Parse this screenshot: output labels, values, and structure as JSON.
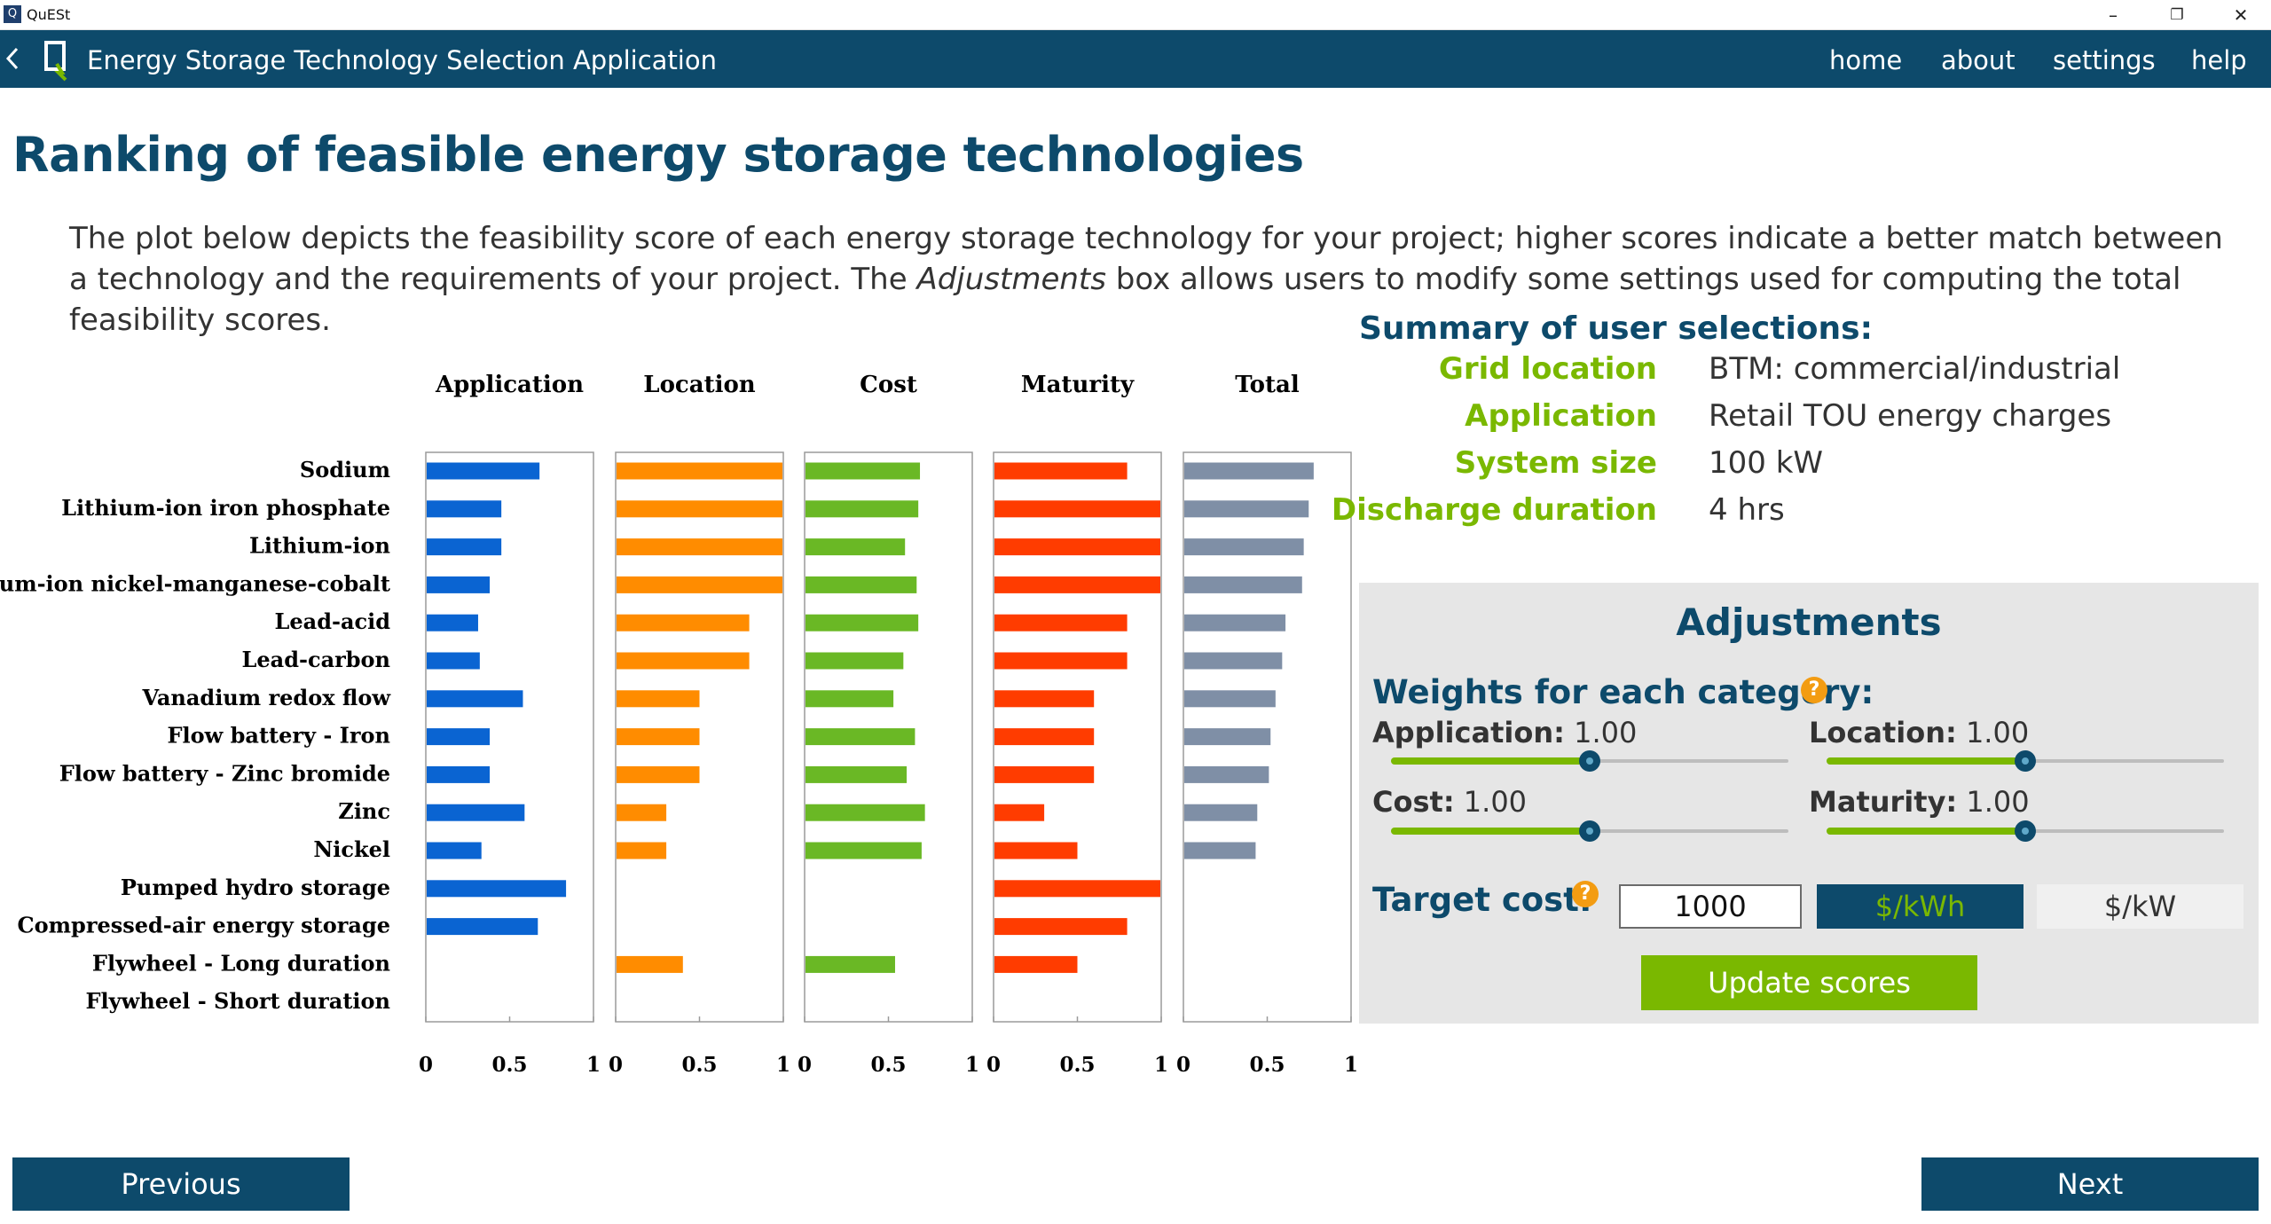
{
  "window": {
    "title": "QuESt",
    "logo_letter": "Q",
    "minimize": "–",
    "restore": "❐",
    "close": "✕"
  },
  "header": {
    "app_title": "Energy Storage Technology Selection Application",
    "nav": [
      "home",
      "about",
      "settings",
      "help"
    ]
  },
  "page": {
    "heading": "Ranking of feasible energy storage technologies",
    "desc_part1": "The  plot  below  depicts the feasibility score of each energy storage technology for your project; higher scores indicate a better match between a technology and the requirements of your project. The ",
    "desc_em": "Adjustments",
    "desc_part2": " box allows users to modify some settings used for computing the total feasibility scores."
  },
  "summary": {
    "title": "Summary of user selections:",
    "rows": [
      {
        "label": "Grid location",
        "value": "BTM: commercial/industrial"
      },
      {
        "label": "Application",
        "value": "Retail TOU energy charges"
      },
      {
        "label": "System size",
        "value": "100 kW"
      },
      {
        "label": "Discharge duration",
        "value": "4 hrs"
      }
    ]
  },
  "adjustments": {
    "title": "Adjustments",
    "weights_label": "Weights for each category:",
    "help_glyph": "?",
    "weights": [
      {
        "label": "Application:",
        "value": "1.00",
        "level": 0.5
      },
      {
        "label": "Location:",
        "value": "1.00",
        "level": 0.5
      },
      {
        "label": "Cost:",
        "value": "1.00",
        "level": 0.5
      },
      {
        "label": "Maturity:",
        "value": "1.00",
        "level": 0.5
      }
    ],
    "target_cost_label": "Target cost:",
    "target_cost_value": "1000",
    "unit_kwh": "$/kWh",
    "unit_kw": "$/kW",
    "update_button": "Update scores"
  },
  "footer": {
    "previous": "Previous",
    "next": "Next"
  },
  "chart_data": {
    "type": "bar",
    "orientation": "horizontal",
    "categories": [
      "Sodium",
      "Lithium-ion iron phosphate",
      "Lithium-ion",
      "Lithium-ion nickel-manganese-cobalt",
      "Lead-acid",
      "Lead-carbon",
      "Vanadium redox flow",
      "Flow battery - Iron",
      "Flow battery - Zinc bromide",
      "Zinc",
      "Nickel",
      "Pumped hydro storage",
      "Compressed-air energy storage",
      "Flywheel - Long duration",
      "Flywheel - Short duration"
    ],
    "xlim": [
      0,
      1
    ],
    "xticks": [
      "0",
      "0.5",
      "1"
    ],
    "grid": false,
    "panels": [
      {
        "name": "Application",
        "color": "#0a64d2",
        "values": [
          0.68,
          0.45,
          0.45,
          0.38,
          0.31,
          0.32,
          0.58,
          0.38,
          0.38,
          0.59,
          0.33,
          0.84,
          0.67,
          null,
          null
        ]
      },
      {
        "name": "Location",
        "color": "#ff8c00",
        "values": [
          1.0,
          1.0,
          1.0,
          1.0,
          0.8,
          0.8,
          0.5,
          0.5,
          0.5,
          0.3,
          0.3,
          null,
          null,
          0.4,
          null
        ]
      },
      {
        "name": "Cost",
        "color": "#6ab825",
        "values": [
          0.69,
          0.68,
          0.6,
          0.67,
          0.68,
          0.59,
          0.53,
          0.66,
          0.61,
          0.72,
          0.7,
          null,
          null,
          0.54,
          null
        ]
      },
      {
        "name": "Maturity",
        "color": "#ff3c00",
        "values": [
          0.8,
          1.0,
          1.0,
          1.0,
          0.8,
          0.8,
          0.6,
          0.6,
          0.6,
          0.3,
          0.5,
          1.0,
          0.8,
          0.5,
          null
        ]
      },
      {
        "name": "Total",
        "color": "#7f8fa6",
        "values": [
          0.78,
          0.75,
          0.72,
          0.71,
          0.61,
          0.59,
          0.55,
          0.52,
          0.51,
          0.44,
          0.43,
          null,
          null,
          null,
          null
        ]
      }
    ]
  }
}
